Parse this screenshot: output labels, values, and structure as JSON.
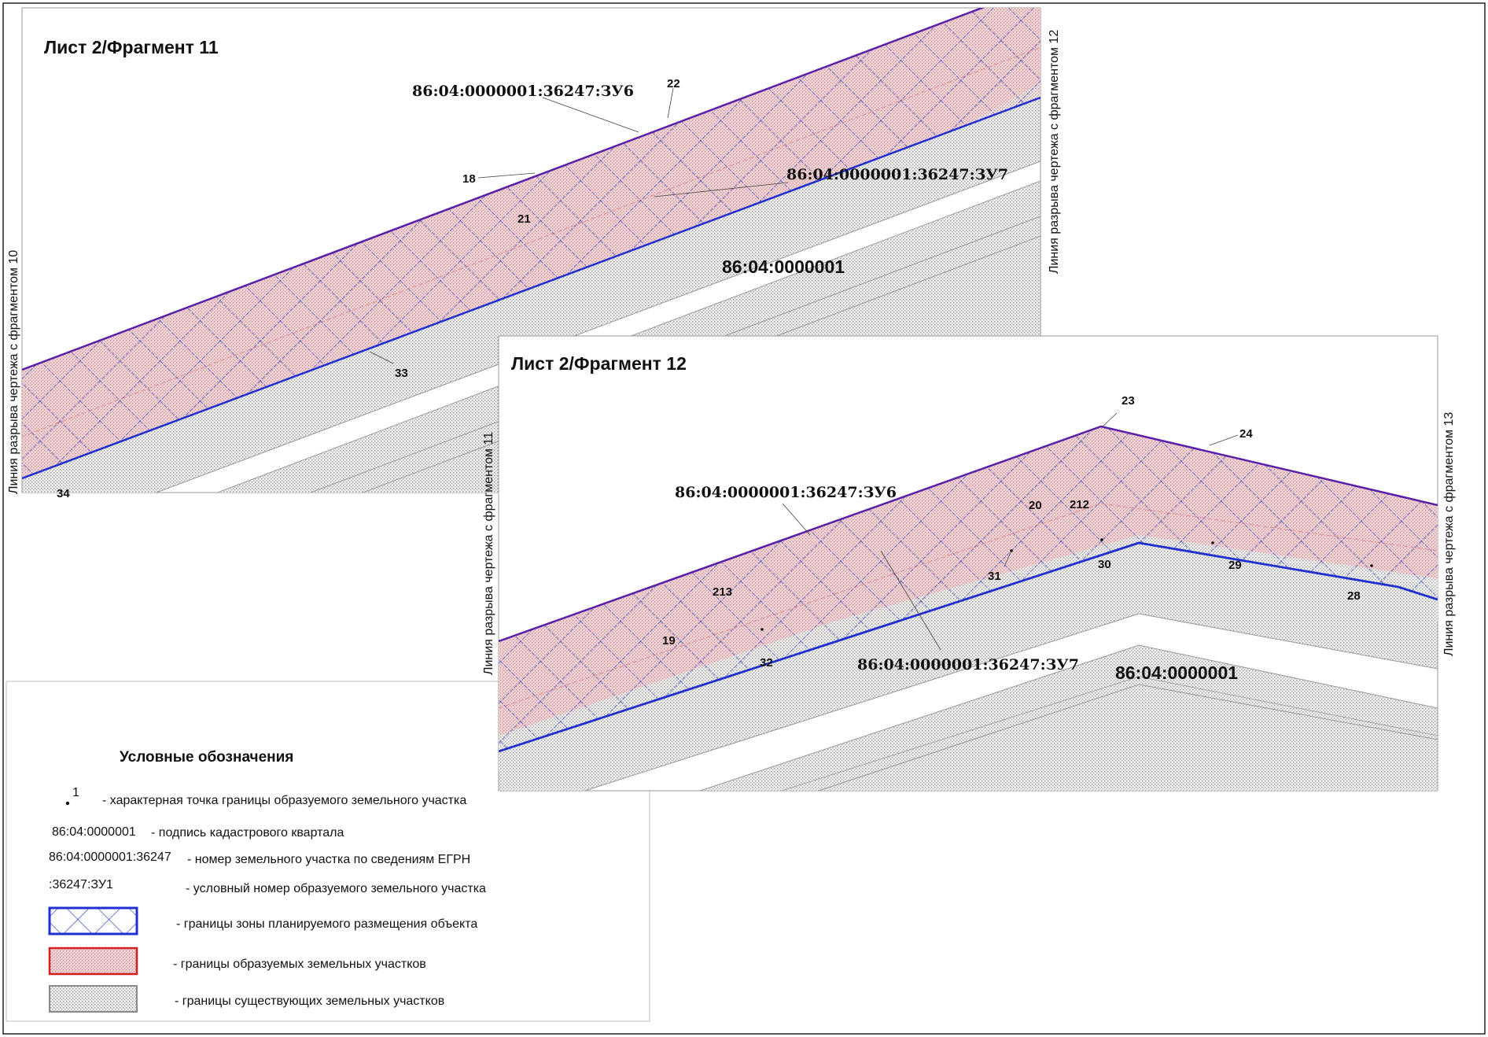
{
  "fragment11": {
    "title": "Лист 2/Фрагмент 11",
    "break_left": "Линия разрыва чертежа с фрагментом 10",
    "break_right": "Линия разрыва чертежа с фрагментом 12",
    "parcel_zu6": "86:04:0000001:36247:ЗУ6",
    "parcel_zu7": "86:04:0000001:36247:ЗУ7",
    "quarter": "86:04:0000001",
    "points": [
      "22",
      "18",
      "21",
      "33",
      "34"
    ]
  },
  "fragment12": {
    "title": "Лист 2/Фрагмент 12",
    "break_left": "Линия разрыва чертежа с фрагментом 11",
    "break_right": "Линия разрыва чертежа с фрагментом 13",
    "parcel_zu6": "86:04:0000001:36247:ЗУ6",
    "parcel_zu7": "86:04:0000001:36247:ЗУ7",
    "quarter": "86:04:0000001",
    "points": [
      "23",
      "24",
      "20",
      "212",
      "31",
      "30",
      "29",
      "28",
      "213",
      "19",
      "32"
    ]
  },
  "legend": {
    "title": "Условные обозначения",
    "items": [
      {
        "sample": "1",
        "text": "- характерная точка границы образуемого земельного участка"
      },
      {
        "sample": "86:04:0000001",
        "text": "- подпись кадастрового квартала"
      },
      {
        "sample": "86:04:0000001:36247",
        "text": "- номер земельного участка по сведениям ЕГРН"
      },
      {
        "sample": ":36247:ЗУ1",
        "text": "- условный номер образуемого земельного участка"
      },
      {
        "sample": "",
        "text": "- границы зоны планируемого размещения объекта"
      },
      {
        "sample": "",
        "text": "- границы образуемых земельных участков"
      },
      {
        "sample": "",
        "text": "- границы существующих земельных участков"
      }
    ]
  },
  "colors": {
    "zone_boundary": "#1f2fd0",
    "formed_parcel_fill": "#e7bcc0",
    "formed_parcel_border": "#d42020",
    "existing_parcel_fill": "#dcdcdc",
    "crosshatch": "#3040c8",
    "upper_line": "#5020a0"
  }
}
